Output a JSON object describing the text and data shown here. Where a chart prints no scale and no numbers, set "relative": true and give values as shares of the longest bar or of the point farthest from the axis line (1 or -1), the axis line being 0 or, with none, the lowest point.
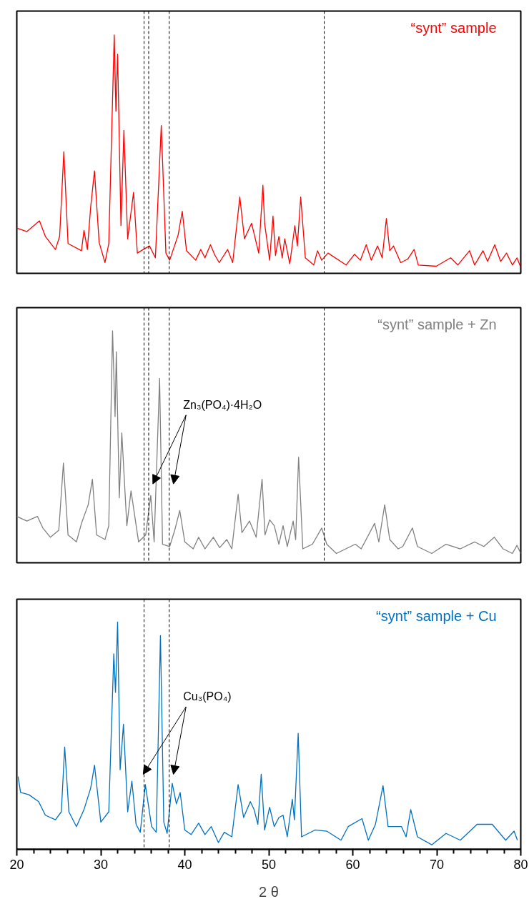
{
  "chart_data": [
    {
      "type": "line",
      "relative": true,
      "xlim": [
        20,
        80
      ],
      "tick_labels": false,
      "series": [
        {
          "name": "“synt” sample",
          "color": "#ff0000",
          "x": [
            20.0,
            21.2,
            22.7,
            23.4,
            24.6,
            25.1,
            25.6,
            26.1,
            27.7,
            28.0,
            28.4,
            28.8,
            29.25,
            29.8,
            30.5,
            30.95,
            31.6,
            31.8,
            32.0,
            32.4,
            32.75,
            33.2,
            33.9,
            34.35,
            35.05,
            35.8,
            36.5,
            37.2,
            37.75,
            38.2,
            39.2,
            39.7,
            40.2,
            41.3,
            41.9,
            42.4,
            43.05,
            43.6,
            44.1,
            45.1,
            45.7,
            46.55,
            47.1,
            47.95,
            48.8,
            49.3,
            49.5,
            50.1,
            50.5,
            50.8,
            51.2,
            51.6,
            51.9,
            52.5,
            53.1,
            53.4,
            53.8,
            54.35,
            55.35,
            55.8,
            56.3,
            57.05,
            59.2,
            60.2,
            60.9,
            61.6,
            62.2,
            62.95,
            63.5,
            64.0,
            64.4,
            64.85,
            65.7,
            66.55,
            67.3,
            67.8,
            69.95,
            71.65,
            72.5,
            73.9,
            74.5,
            75.5,
            76.05,
            76.9,
            77.6,
            78.3,
            79.0,
            79.55,
            80.0
          ],
          "values": [
            0.19,
            0.175,
            0.22,
            0.155,
            0.1,
            0.155,
            0.51,
            0.125,
            0.095,
            0.18,
            0.1,
            0.28,
            0.43,
            0.13,
            0.045,
            0.125,
            1.0,
            0.68,
            0.92,
            0.2,
            0.6,
            0.145,
            0.34,
            0.085,
            0.1,
            0.115,
            0.065,
            0.62,
            0.085,
            0.055,
            0.16,
            0.26,
            0.095,
            0.055,
            0.1,
            0.065,
            0.12,
            0.075,
            0.045,
            0.1,
            0.045,
            0.32,
            0.145,
            0.21,
            0.085,
            0.37,
            0.21,
            0.055,
            0.24,
            0.075,
            0.155,
            0.065,
            0.145,
            0.04,
            0.2,
            0.115,
            0.32,
            0.065,
            0.035,
            0.095,
            0.055,
            0.085,
            0.035,
            0.08,
            0.055,
            0.12,
            0.055,
            0.115,
            0.065,
            0.23,
            0.095,
            0.115,
            0.045,
            0.06,
            0.1,
            0.035,
            0.03,
            0.065,
            0.035,
            0.095,
            0.035,
            0.095,
            0.05,
            0.12,
            0.05,
            0.085,
            0.035,
            0.065,
            0.025
          ]
        }
      ],
      "ref_lines": [
        {
          "axis": "x",
          "value": 35.15,
          "line_style": "dashed",
          "color": "#000000"
        },
        {
          "axis": "x",
          "value": 35.7,
          "line_style": "dashed",
          "color": "#000000"
        },
        {
          "axis": "x",
          "value": 38.15,
          "line_style": "dashed",
          "color": "#000000"
        },
        {
          "axis": "x",
          "value": 56.6,
          "line_style": "dashed",
          "color": "#000000"
        }
      ]
    },
    {
      "type": "line",
      "relative": true,
      "xlim": [
        20,
        80
      ],
      "tick_labels": false,
      "series": [
        {
          "name": "“synt” sample + Zn",
          "color": "#808080",
          "x": [
            20.0,
            21.2,
            22.45,
            23.1,
            24.0,
            25.0,
            25.55,
            26.1,
            27.1,
            27.7,
            28.5,
            29.0,
            29.5,
            30.5,
            30.95,
            31.4,
            31.7,
            31.85,
            32.2,
            32.5,
            33.1,
            33.6,
            34.5,
            35.35,
            35.95,
            36.35,
            37.0,
            37.35,
            38.2,
            38.8,
            39.4,
            40.0,
            41.0,
            41.65,
            42.4,
            43.4,
            44.15,
            45.0,
            45.6,
            46.35,
            46.8,
            47.7,
            48.5,
            49.2,
            49.55,
            50.1,
            50.65,
            51.2,
            51.7,
            52.2,
            52.9,
            53.2,
            53.55,
            54.05,
            55.2,
            56.3,
            56.9,
            58.05,
            60.3,
            61.0,
            62.6,
            63.1,
            63.8,
            64.4,
            65.4,
            65.95,
            67.1,
            67.7,
            69.4,
            71.1,
            72.8,
            74.5,
            75.6,
            76.85,
            77.9,
            79.0,
            79.55,
            80.0
          ],
          "values": [
            0.2,
            0.18,
            0.2,
            0.15,
            0.11,
            0.14,
            0.43,
            0.12,
            0.09,
            0.17,
            0.25,
            0.36,
            0.12,
            0.1,
            0.16,
            1.0,
            0.63,
            0.91,
            0.28,
            0.56,
            0.16,
            0.31,
            0.09,
            0.12,
            0.29,
            0.09,
            0.795,
            0.08,
            0.07,
            0.14,
            0.225,
            0.09,
            0.06,
            0.11,
            0.06,
            0.11,
            0.065,
            0.1,
            0.06,
            0.295,
            0.13,
            0.18,
            0.11,
            0.36,
            0.12,
            0.185,
            0.16,
            0.08,
            0.16,
            0.07,
            0.18,
            0.1,
            0.455,
            0.06,
            0.08,
            0.15,
            0.08,
            0.04,
            0.08,
            0.06,
            0.17,
            0.09,
            0.25,
            0.1,
            0.06,
            0.07,
            0.15,
            0.07,
            0.04,
            0.08,
            0.06,
            0.09,
            0.07,
            0.11,
            0.06,
            0.04,
            0.075,
            0.04
          ]
        }
      ],
      "ref_lines": [
        {
          "axis": "x",
          "value": 35.15,
          "line_style": "dashed",
          "color": "#000000"
        },
        {
          "axis": "x",
          "value": 35.7,
          "line_style": "dashed",
          "color": "#000000"
        },
        {
          "axis": "x",
          "value": 38.15,
          "line_style": "dashed",
          "color": "#000000"
        },
        {
          "axis": "x",
          "value": 56.6,
          "line_style": "dashed",
          "color": "#000000"
        }
      ],
      "annotations": [
        {
          "text": "Zn₃(PO₄)·4H₂O",
          "x": 36.2,
          "y": 0.34
        }
      ]
    },
    {
      "type": "line",
      "relative": true,
      "xlim": [
        20,
        80
      ],
      "tick_labels": "x",
      "xlabel": "2 θ",
      "xticks": [
        20,
        {
          "value": 22,
          "label": null
        },
        {
          "value": 24,
          "label": null
        },
        {
          "value": 26,
          "label": null
        },
        {
          "value": 28,
          "label": null
        },
        30,
        {
          "value": 32,
          "label": null
        },
        {
          "value": 34,
          "label": null
        },
        {
          "value": 36,
          "label": null
        },
        {
          "value": 38,
          "label": null
        },
        40,
        {
          "value": 42,
          "label": null
        },
        {
          "value": 44,
          "label": null
        },
        {
          "value": 46,
          "label": null
        },
        {
          "value": 48,
          "label": null
        },
        50,
        {
          "value": 52,
          "label": null
        },
        {
          "value": 54,
          "label": null
        },
        {
          "value": 56,
          "label": null
        },
        {
          "value": 58,
          "label": null
        },
        60,
        {
          "value": 62,
          "label": null
        },
        {
          "value": 64,
          "label": null
        },
        {
          "value": 66,
          "label": null
        },
        {
          "value": 68,
          "label": null
        },
        70,
        {
          "value": 72,
          "label": null
        },
        {
          "value": 74,
          "label": null
        },
        {
          "value": 76,
          "label": null
        },
        {
          "value": 78,
          "label": null
        },
        80
      ],
      "series": [
        {
          "name": "“synt” sample + Cu",
          "color": "#0070c0",
          "x": [
            20.15,
            20.45,
            21.45,
            22.6,
            23.4,
            24.6,
            25.3,
            25.7,
            26.2,
            27.1,
            28.0,
            28.8,
            29.25,
            30.0,
            30.95,
            31.55,
            31.75,
            32.0,
            32.3,
            32.7,
            33.2,
            33.7,
            34.2,
            34.7,
            35.3,
            36.05,
            36.6,
            37.1,
            37.5,
            37.9,
            38.5,
            39.0,
            39.45,
            40.0,
            40.75,
            41.65,
            42.4,
            43.15,
            44.0,
            44.7,
            45.6,
            46.35,
            47.0,
            47.8,
            48.25,
            48.7,
            49.1,
            49.5,
            50.1,
            50.65,
            51.2,
            51.7,
            52.2,
            52.8,
            53.05,
            53.5,
            53.9,
            55.5,
            56.9,
            58.6,
            59.45,
            61.1,
            61.85,
            62.7,
            63.6,
            64.2,
            65.8,
            66.35,
            66.9,
            67.7,
            69.4,
            71.1,
            72.8,
            74.8,
            76.6,
            78.2,
            79.2,
            79.6
          ],
          "values": [
            0.32,
            0.25,
            0.24,
            0.21,
            0.15,
            0.13,
            0.165,
            0.45,
            0.165,
            0.1,
            0.175,
            0.27,
            0.37,
            0.12,
            0.165,
            0.86,
            0.69,
            1.0,
            0.35,
            0.55,
            0.165,
            0.3,
            0.11,
            0.075,
            0.285,
            0.1,
            0.075,
            0.94,
            0.12,
            0.07,
            0.29,
            0.2,
            0.25,
            0.085,
            0.065,
            0.115,
            0.065,
            0.1,
            0.03,
            0.075,
            0.055,
            0.285,
            0.14,
            0.21,
            0.175,
            0.11,
            0.33,
            0.085,
            0.185,
            0.1,
            0.14,
            0.15,
            0.055,
            0.22,
            0.13,
            0.51,
            0.055,
            0.085,
            0.08,
            0.04,
            0.1,
            0.135,
            0.04,
            0.11,
            0.28,
            0.1,
            0.1,
            0.055,
            0.175,
            0.055,
            0.02,
            0.07,
            0.04,
            0.11,
            0.11,
            0.04,
            0.08,
            0.04
          ]
        }
      ],
      "ref_lines": [
        {
          "axis": "x",
          "value": 35.15,
          "line_style": "dashed",
          "color": "#000000"
        },
        {
          "axis": "x",
          "value": 38.15,
          "line_style": "dashed",
          "color": "#000000"
        }
      ],
      "annotations": [
        {
          "text": "Cu₃(PO₄)",
          "x": 35.05,
          "y": 0.33
        }
      ]
    }
  ]
}
